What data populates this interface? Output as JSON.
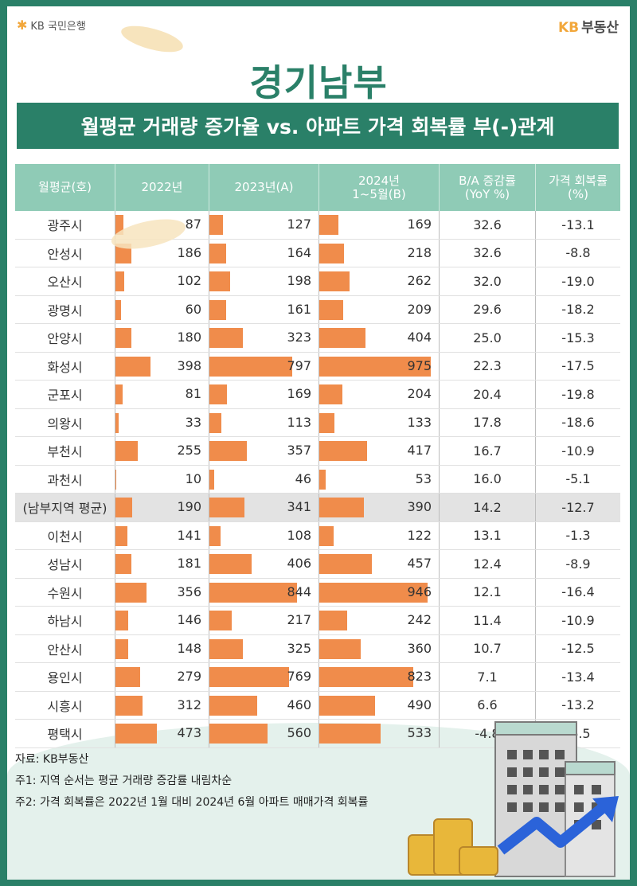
{
  "header": {
    "bank_logo_text": "KB 국민은행",
    "brand_kb": "KB",
    "brand_name": "부동산"
  },
  "title": "경기남부",
  "subtitle": "월평균 거래량 증가율 vs. 아파트 가격 회복률 부(-)관계",
  "table": {
    "headers": {
      "region": "월평균(호)",
      "y2022": "2022년",
      "y2023": "2023년(A)",
      "y2024_line1": "2024년",
      "y2024_line2": "1~5월(B)",
      "growth_line1": "B/A 증감률",
      "growth_line2": "(YoY %)",
      "recovery_line1": "가격 회복률",
      "recovery_line2": "(%)"
    },
    "rows": [
      {
        "region": "광주시",
        "y2022": 87,
        "y2023": 127,
        "y2024": 169,
        "growth": "32.6",
        "recovery": "-13.1"
      },
      {
        "region": "안성시",
        "y2022": 186,
        "y2023": 164,
        "y2024": 218,
        "growth": "32.6",
        "recovery": "-8.8"
      },
      {
        "region": "오산시",
        "y2022": 102,
        "y2023": 198,
        "y2024": 262,
        "growth": "32.0",
        "recovery": "-19.0"
      },
      {
        "region": "광명시",
        "y2022": 60,
        "y2023": 161,
        "y2024": 209,
        "growth": "29.6",
        "recovery": "-18.2"
      },
      {
        "region": "안양시",
        "y2022": 180,
        "y2023": 323,
        "y2024": 404,
        "growth": "25.0",
        "recovery": "-15.3"
      },
      {
        "region": "화성시",
        "y2022": 398,
        "y2023": 797,
        "y2024": 975,
        "growth": "22.3",
        "recovery": "-17.5"
      },
      {
        "region": "군포시",
        "y2022": 81,
        "y2023": 169,
        "y2024": 204,
        "growth": "20.4",
        "recovery": "-19.8"
      },
      {
        "region": "의왕시",
        "y2022": 33,
        "y2023": 113,
        "y2024": 133,
        "growth": "17.8",
        "recovery": "-18.6"
      },
      {
        "region": "부천시",
        "y2022": 255,
        "y2023": 357,
        "y2024": 417,
        "growth": "16.7",
        "recovery": "-10.9"
      },
      {
        "region": "과천시",
        "y2022": 10,
        "y2023": 46,
        "y2024": 53,
        "growth": "16.0",
        "recovery": "-5.1"
      },
      {
        "region": "(남부지역 평균)",
        "y2022": 190,
        "y2023": 341,
        "y2024": 390,
        "growth": "14.2",
        "recovery": "-12.7",
        "highlight": true
      },
      {
        "region": "이천시",
        "y2022": 141,
        "y2023": 108,
        "y2024": 122,
        "growth": "13.1",
        "recovery": "-1.3"
      },
      {
        "region": "성남시",
        "y2022": 181,
        "y2023": 406,
        "y2024": 457,
        "growth": "12.4",
        "recovery": "-8.9"
      },
      {
        "region": "수원시",
        "y2022": 356,
        "y2023": 844,
        "y2024": 946,
        "growth": "12.1",
        "recovery": "-16.4"
      },
      {
        "region": "하남시",
        "y2022": 146,
        "y2023": 217,
        "y2024": 242,
        "growth": "11.4",
        "recovery": "-10.9"
      },
      {
        "region": "안산시",
        "y2022": 148,
        "y2023": 325,
        "y2024": 360,
        "growth": "10.7",
        "recovery": "-12.5"
      },
      {
        "region": "용인시",
        "y2022": 279,
        "y2023": 769,
        "y2024": 823,
        "growth": "7.1",
        "recovery": "-13.4"
      },
      {
        "region": "시흥시",
        "y2022": 312,
        "y2023": 460,
        "y2024": 490,
        "growth": "6.6",
        "recovery": "-13.2"
      },
      {
        "region": "평택시",
        "y2022": 473,
        "y2023": 560,
        "y2024": 533,
        "growth": "-4.8",
        "recovery": "-6.5"
      }
    ]
  },
  "notes": {
    "source": "자료: KB부동산",
    "note1": "주1: 지역 순서는 평균 거래량 증감률 내림차순",
    "note2": "주2: 가격 회복률은 2022년 1월 대비 2024년 6월 아파트 매매가격 회복률"
  },
  "colors": {
    "frame": "#2a8068",
    "header_bg": "#8fcbb6",
    "bar": "#f08c4b",
    "avg_row": "#e3e3e3"
  }
}
